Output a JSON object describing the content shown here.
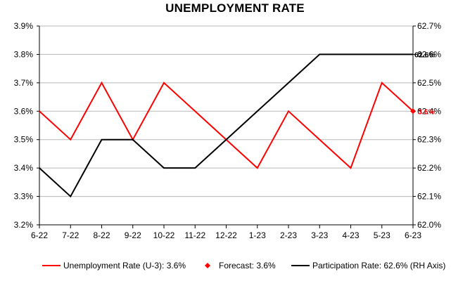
{
  "chart_data": {
    "type": "line",
    "title": "UNEMPLOYMENT RATE",
    "categories": [
      "6-22",
      "7-22",
      "8-22",
      "9-22",
      "10-22",
      "11-22",
      "12-22",
      "1-23",
      "2-23",
      "3-23",
      "4-23",
      "5-23",
      "6-23"
    ],
    "y_left": {
      "min": 3.2,
      "max": 3.9,
      "ticks": [
        "3.2%",
        "3.3%",
        "3.4%",
        "3.5%",
        "3.6%",
        "3.7%",
        "3.8%",
        "3.9%"
      ]
    },
    "y_right": {
      "min": 62.0,
      "max": 62.7,
      "ticks": [
        "62.0%",
        "62.1%",
        "62.2%",
        "62.3%",
        "62.4%",
        "62.5%",
        "62.6%",
        "62.7%"
      ]
    },
    "series": [
      {
        "name": "Unemployment Rate (U-3)",
        "axis": "left",
        "color": "#ff0000",
        "values": [
          3.6,
          3.5,
          3.7,
          3.5,
          3.7,
          3.6,
          3.5,
          3.4,
          3.6,
          3.5,
          3.4,
          3.7,
          3.6
        ]
      },
      {
        "name": "Participation Rate",
        "axis": "right",
        "color": "#000000",
        "values": [
          62.2,
          62.1,
          62.3,
          62.3,
          62.2,
          62.2,
          62.3,
          62.4,
          62.5,
          62.6,
          62.6,
          62.6,
          62.6
        ]
      }
    ],
    "forecast": {
      "name": "Forecast",
      "axis": "left",
      "category": "6-23",
      "value": 3.6,
      "color": "#ff0000"
    },
    "end_labels": {
      "unemployment": "3.6%",
      "participation": "62.6%"
    },
    "legend": [
      {
        "label": "Unemployment Rate (U-3): 3.6%",
        "kind": "line",
        "color": "#ff0000"
      },
      {
        "label": "Forecast: 3.6%",
        "kind": "marker",
        "color": "#ff0000"
      },
      {
        "label": "Participation Rate: 62.6% (RH Axis)",
        "kind": "line",
        "color": "#000000"
      }
    ],
    "grid": true,
    "legend_position": "bottom"
  }
}
